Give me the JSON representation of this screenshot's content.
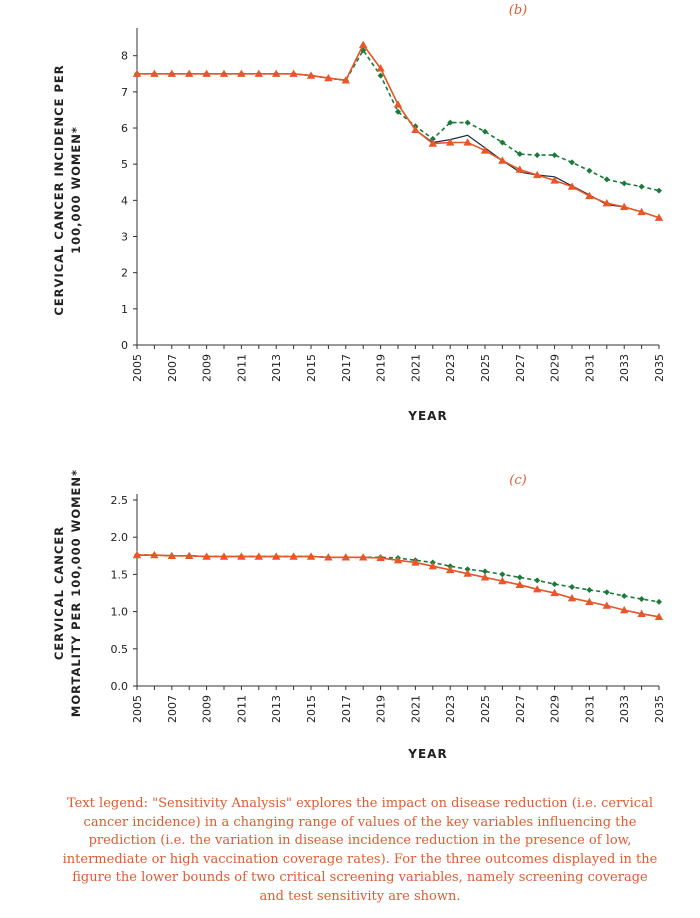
{
  "chart_data": [
    {
      "id": "b",
      "type": "line",
      "panel_label": "(b)",
      "ylabel": [
        "CERVICAL CANCER INCIDENCE PER",
        "100,000 WOMEN*"
      ],
      "xlabel": "YEAR",
      "x": [
        2005,
        2006,
        2007,
        2008,
        2009,
        2010,
        2011,
        2012,
        2013,
        2014,
        2015,
        2016,
        2017,
        2018,
        2019,
        2020,
        2021,
        2022,
        2023,
        2024,
        2025,
        2026,
        2027,
        2028,
        2029,
        2030,
        2031,
        2032,
        2033,
        2034,
        2035
      ],
      "xticks": [
        "2005",
        "2007",
        "2009",
        "2011",
        "2013",
        "2015",
        "2017",
        "2019",
        "2021",
        "2023",
        "2025",
        "2027",
        "2029",
        "2031",
        "2033",
        "2035"
      ],
      "yticks": [
        "0",
        "1",
        "2",
        "3",
        "4",
        "5",
        "6",
        "7",
        "8"
      ],
      "ylim": [
        0,
        8.6
      ],
      "grid": false,
      "series": [
        {
          "color": "#1a7a3a",
          "style": "dashed",
          "marker": "diamond",
          "values": [
            7.5,
            7.5,
            7.5,
            7.5,
            7.5,
            7.5,
            7.5,
            7.5,
            7.5,
            7.5,
            7.45,
            7.38,
            7.32,
            8.15,
            7.45,
            6.45,
            6.05,
            5.7,
            6.15,
            6.15,
            5.9,
            5.6,
            5.28,
            5.25,
            5.25,
            5.05,
            4.82,
            4.58,
            4.47,
            4.38,
            4.27
          ]
        },
        {
          "color": "#1d2a3a",
          "style": "solid",
          "marker": "none",
          "values": [
            7.5,
            7.5,
            7.5,
            7.5,
            7.5,
            7.5,
            7.5,
            7.5,
            7.5,
            7.5,
            7.45,
            7.38,
            7.32,
            8.3,
            7.65,
            6.65,
            5.95,
            5.6,
            5.68,
            5.8,
            5.45,
            5.1,
            4.78,
            4.7,
            4.65,
            4.4,
            4.15,
            3.88,
            3.82,
            3.68,
            3.52
          ]
        },
        {
          "color": "#e8562a",
          "style": "solid",
          "marker": "triangle",
          "values": [
            7.5,
            7.5,
            7.5,
            7.5,
            7.5,
            7.5,
            7.5,
            7.5,
            7.5,
            7.5,
            7.45,
            7.38,
            7.32,
            8.3,
            7.65,
            6.65,
            5.95,
            5.57,
            5.6,
            5.6,
            5.38,
            5.1,
            4.85,
            4.7,
            4.55,
            4.38,
            4.12,
            3.92,
            3.82,
            3.68,
            3.52
          ]
        }
      ]
    },
    {
      "id": "c",
      "type": "line",
      "panel_label": "(c)",
      "ylabel": [
        "CERVICAL CANCER",
        "MORTALITY PER 100,000 WOMEN*"
      ],
      "xlabel": "YEAR",
      "x": [
        2005,
        2006,
        2007,
        2008,
        2009,
        2010,
        2011,
        2012,
        2013,
        2014,
        2015,
        2016,
        2017,
        2018,
        2019,
        2020,
        2021,
        2022,
        2023,
        2024,
        2025,
        2026,
        2027,
        2028,
        2029,
        2030,
        2031,
        2032,
        2033,
        2034,
        2035
      ],
      "xticks": [
        "2005",
        "2007",
        "2009",
        "2011",
        "2013",
        "2015",
        "2017",
        "2019",
        "2021",
        "2023",
        "2025",
        "2027",
        "2029",
        "2031",
        "2033",
        "2035"
      ],
      "yticks": [
        "0.0",
        "0.5",
        "1.0",
        "1.5",
        "2.0",
        "2.5"
      ],
      "ylim": [
        0,
        2.5
      ],
      "grid": false,
      "series": [
        {
          "color": "#1a7a3a",
          "style": "dashed",
          "marker": "diamond",
          "values": [
            1.76,
            1.76,
            1.75,
            1.75,
            1.74,
            1.74,
            1.74,
            1.74,
            1.74,
            1.74,
            1.74,
            1.73,
            1.73,
            1.73,
            1.73,
            1.72,
            1.69,
            1.66,
            1.61,
            1.57,
            1.54,
            1.5,
            1.46,
            1.42,
            1.37,
            1.33,
            1.29,
            1.26,
            1.21,
            1.17,
            1.13
          ]
        },
        {
          "color": "#1d2a3a",
          "style": "solid",
          "marker": "none",
          "values": [
            1.76,
            1.76,
            1.75,
            1.75,
            1.74,
            1.74,
            1.74,
            1.74,
            1.74,
            1.74,
            1.74,
            1.73,
            1.73,
            1.73,
            1.72,
            1.69,
            1.66,
            1.61,
            1.56,
            1.51,
            1.46,
            1.41,
            1.36,
            1.3,
            1.25,
            1.18,
            1.13,
            1.08,
            1.02,
            0.97,
            0.93
          ]
        },
        {
          "color": "#e8562a",
          "style": "solid",
          "marker": "triangle",
          "values": [
            1.76,
            1.76,
            1.75,
            1.75,
            1.74,
            1.74,
            1.74,
            1.74,
            1.74,
            1.74,
            1.74,
            1.73,
            1.73,
            1.73,
            1.72,
            1.69,
            1.66,
            1.61,
            1.56,
            1.51,
            1.46,
            1.41,
            1.36,
            1.3,
            1.25,
            1.18,
            1.13,
            1.08,
            1.02,
            0.97,
            0.93
          ]
        }
      ]
    }
  ],
  "legend_text": "Text legend: \"Sensitivity Analysis\" explores the impact on disease reduction (i.e. cervical cancer incidence) in a changing range of values of the key variables influencing the prediction (i.e. the variation in disease incidence reduction in the presence of low, intermediate or high vaccination coverage rates). For the three outcomes displayed in the figure the lower bounds of two critical screening variables, namely screening coverage and test sensitivity are shown."
}
